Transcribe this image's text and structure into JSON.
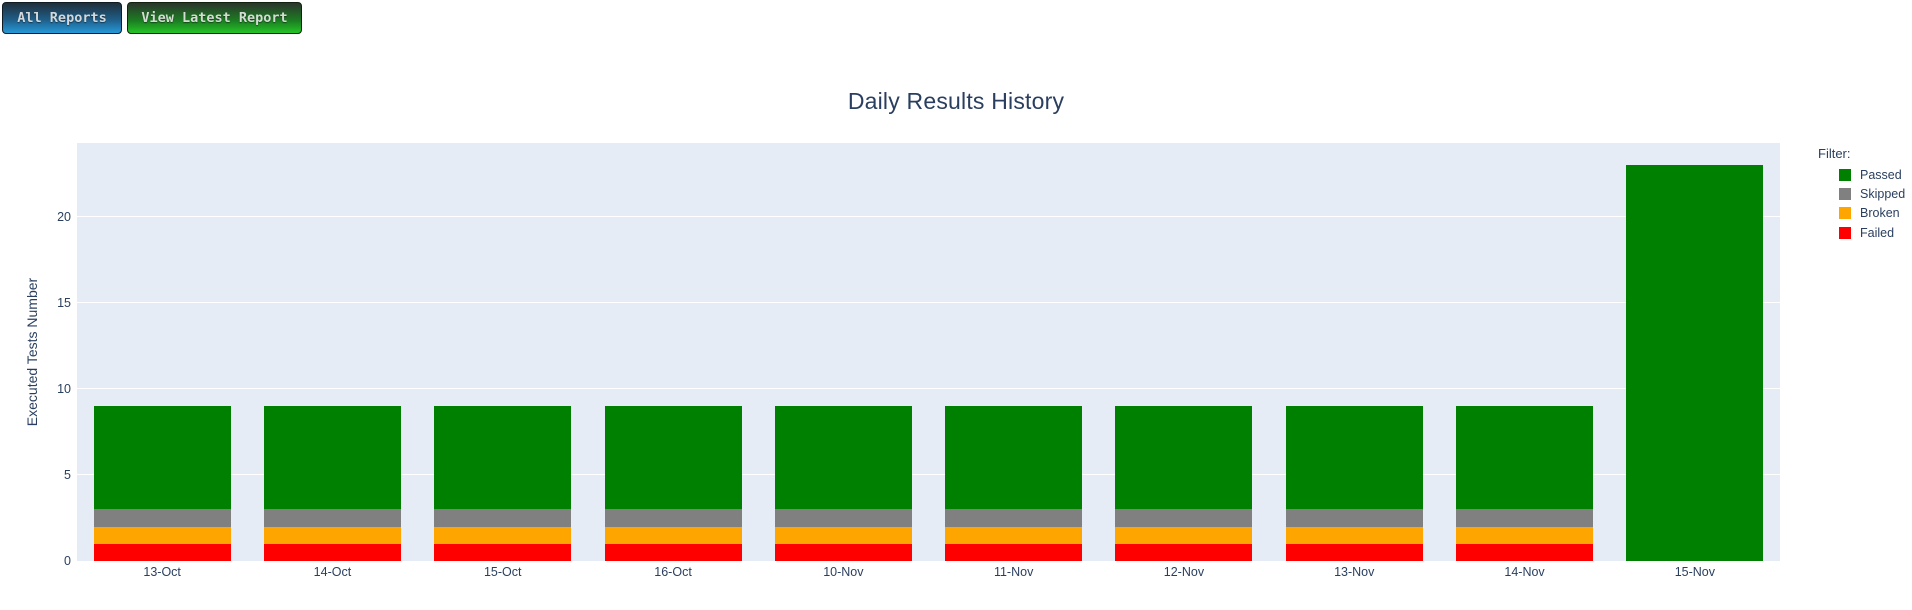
{
  "toolbar": {
    "all_reports_label": "All Reports",
    "view_latest_label": "View Latest Report"
  },
  "chart_data": {
    "type": "bar",
    "stacked": true,
    "title": "Daily Results History",
    "xlabel": "",
    "ylabel": "Executed Tests Number",
    "categories": [
      "13-Oct",
      "14-Oct",
      "15-Oct",
      "16-Oct",
      "10-Nov",
      "11-Nov",
      "12-Nov",
      "13-Nov",
      "14-Nov",
      "15-Nov"
    ],
    "series": [
      {
        "name": "Failed",
        "color": "#ff0000",
        "values": [
          1,
          1,
          1,
          1,
          1,
          1,
          1,
          1,
          1,
          0
        ]
      },
      {
        "name": "Broken",
        "color": "#ffa500",
        "values": [
          1,
          1,
          1,
          1,
          1,
          1,
          1,
          1,
          1,
          0
        ]
      },
      {
        "name": "Skipped",
        "color": "#808080",
        "values": [
          1,
          1,
          1,
          1,
          1,
          1,
          1,
          1,
          1,
          0
        ]
      },
      {
        "name": "Passed",
        "color": "#008000",
        "values": [
          6,
          6,
          6,
          6,
          6,
          6,
          6,
          6,
          6,
          23
        ]
      }
    ],
    "legend": {
      "title": "Filter:",
      "position": "top-right",
      "items_order": [
        "Passed",
        "Skipped",
        "Broken",
        "Failed"
      ]
    },
    "yticks": [
      0,
      5,
      10,
      15,
      20
    ],
    "ylim": [
      0,
      24.3
    ],
    "grid": true,
    "plot_bg": "#e5ecf6",
    "grid_color": "#ffffff",
    "text_color": "#2a3f5f"
  }
}
